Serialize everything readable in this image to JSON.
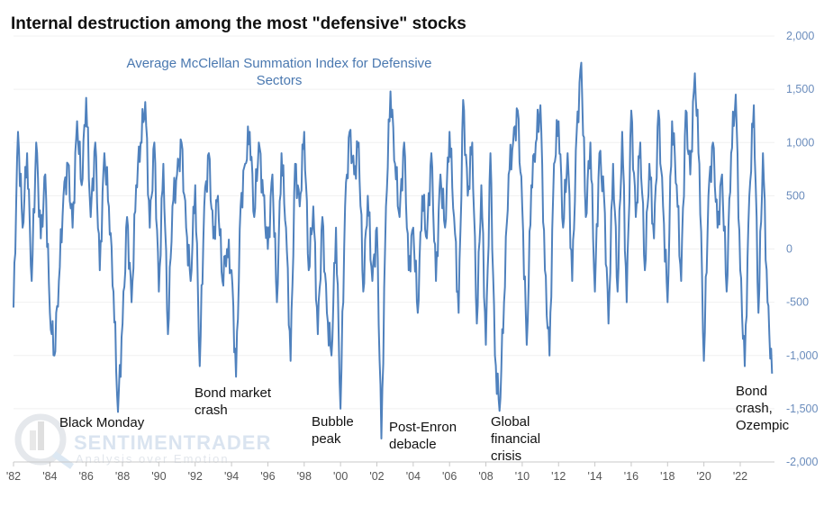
{
  "chart_data": {
    "type": "line",
    "title": "Internal destruction among the most \"defensive\" stocks",
    "subtitle": "Average McClellan Summation Index for Defensive Sectors",
    "xlabel": "",
    "ylabel": "",
    "xlim": [
      1982,
      2024.3
    ],
    "ylim": [
      -2000,
      2000
    ],
    "y_ticks": [
      2000,
      1500,
      1000,
      500,
      0,
      -500,
      -1000,
      -1500,
      -2000
    ],
    "y_tick_labels": [
      "2,000",
      "1,500",
      "1,000",
      "500",
      "0",
      "-500",
      "-1,000",
      "-1,500",
      "-2,000"
    ],
    "x_ticks": [
      1982,
      1984,
      1986,
      1988,
      1990,
      1992,
      1994,
      1996,
      1998,
      2000,
      2002,
      2004,
      2006,
      2008,
      2010,
      2012,
      2014,
      2016,
      2018,
      2020,
      2022
    ],
    "x_tick_labels": [
      "'82",
      "'84",
      "'86",
      "'88",
      "'90",
      "'92",
      "'94",
      "'96",
      "'98",
      "'00",
      "'02",
      "'04",
      "'06",
      "'08",
      "'10",
      "'12",
      "'14",
      "'16",
      "'18",
      "'20",
      "'22"
    ],
    "grid": true,
    "line_color": "#4f81bd",
    "series": [
      {
        "name": "Average McClellan Summation Index for Defensive Sectors",
        "x_start": 1982,
        "x_step": 0.25,
        "values": [
          -550,
          1100,
          200,
          900,
          -300,
          1000,
          100,
          700,
          -600,
          -1000,
          -300,
          500,
          800,
          200,
          1200,
          600,
          1420,
          300,
          1000,
          -200,
          900,
          400,
          -400,
          -1530,
          -700,
          300,
          -500,
          600,
          1000,
          1380,
          200,
          1000,
          -400,
          800,
          -800,
          400,
          700,
          1000,
          200,
          -300,
          600,
          -1100,
          400,
          900,
          100,
          500,
          -300,
          0,
          -200,
          -1200,
          400,
          800,
          1100,
          300,
          1000,
          500,
          0,
          700,
          -500,
          900,
          200,
          -1050,
          800,
          400,
          1100,
          -200,
          400,
          -800,
          300,
          -600,
          -1000,
          200,
          -1500,
          400,
          1100,
          700,
          1000,
          -400,
          500,
          -300,
          200,
          -1780,
          400,
          1480,
          800,
          300,
          1000,
          -200,
          200,
          -600,
          500,
          100,
          900,
          -300,
          700,
          200,
          1100,
          300,
          -600,
          1400,
          500,
          1000,
          -700,
          600,
          -900,
          900,
          -1000,
          -1520,
          -500,
          700,
          1000,
          1300,
          400,
          -900,
          600,
          1000,
          1350,
          -200,
          -1000,
          800,
          1200,
          200,
          900,
          -300,
          1100,
          1750,
          300,
          1000,
          -400,
          900,
          500,
          -700,
          800,
          -400,
          1100,
          -500,
          1300,
          300,
          1000,
          -200,
          800,
          100,
          1300,
          400,
          -500,
          1200,
          600,
          -300,
          1300,
          700,
          1650,
          800,
          -1050,
          500,
          1000,
          200,
          700,
          -400,
          900,
          1450,
          -200,
          -1100,
          500,
          1350,
          -600,
          900,
          -500,
          -1170
        ]
      }
    ],
    "annotations": [
      {
        "lines": [
          "Black Monday"
        ],
        "x": 1987.8
      },
      {
        "lines": [
          "Bond market",
          "crash"
        ],
        "x": 1994
      },
      {
        "lines": [
          "Bubble",
          "peak"
        ],
        "x": 2000.1
      },
      {
        "lines": [
          "Post-Enron",
          "debacle"
        ],
        "x": 2002.5
      },
      {
        "lines": [
          "Global",
          "financial",
          "crisis"
        ],
        "x": 2008.8
      },
      {
        "lines": [
          "Bond",
          "crash,",
          "Ozempic"
        ],
        "x": 2023.7
      }
    ],
    "watermark": {
      "brand": "SENTIMENTRADER",
      "tagline": "Analysis over Emotion"
    }
  }
}
